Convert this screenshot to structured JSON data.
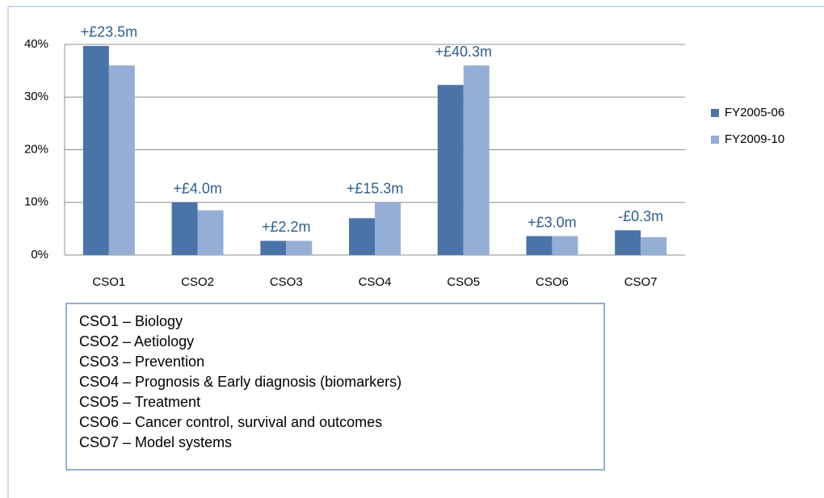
{
  "chart_data": {
    "type": "bar",
    "categories": [
      "CSO1",
      "CSO2",
      "CSO3",
      "CSO4",
      "CSO5",
      "CSO6",
      "CSO7"
    ],
    "series": [
      {
        "name": "FY2005-06",
        "color": "#4a74a8",
        "values": [
          39.7,
          10.0,
          2.7,
          7.0,
          32.3,
          3.6,
          4.7
        ]
      },
      {
        "name": "FY2009-10",
        "color": "#95aed6",
        "values": [
          36.0,
          8.5,
          2.7,
          10.0,
          36.0,
          3.6,
          3.4
        ]
      }
    ],
    "category_annotations": [
      "+£23.5m",
      "+£4.0m",
      "+£2.2m",
      "+£15.3m",
      "+£40.3m",
      "+£3.0m",
      "-£0.3m"
    ],
    "ylim": [
      0,
      40
    ],
    "yticks": [
      {
        "value": 0,
        "label": "0%"
      },
      {
        "value": 10,
        "label": "10%"
      },
      {
        "value": 20,
        "label": "20%"
      },
      {
        "value": 30,
        "label": "30%"
      },
      {
        "value": 40,
        "label": "40%"
      }
    ],
    "grid": true,
    "legend": "right"
  },
  "key_box": {
    "lines": [
      "CSO1 – Biology",
      "CSO2 – Aetiology",
      "CSO3 – Prevention",
      "CSO4 – Prognosis & Early diagnosis (biomarkers)",
      "CSO5 – Treatment",
      "CSO6 – Cancer control, survival and outcomes",
      "CSO7 – Model systems"
    ]
  }
}
